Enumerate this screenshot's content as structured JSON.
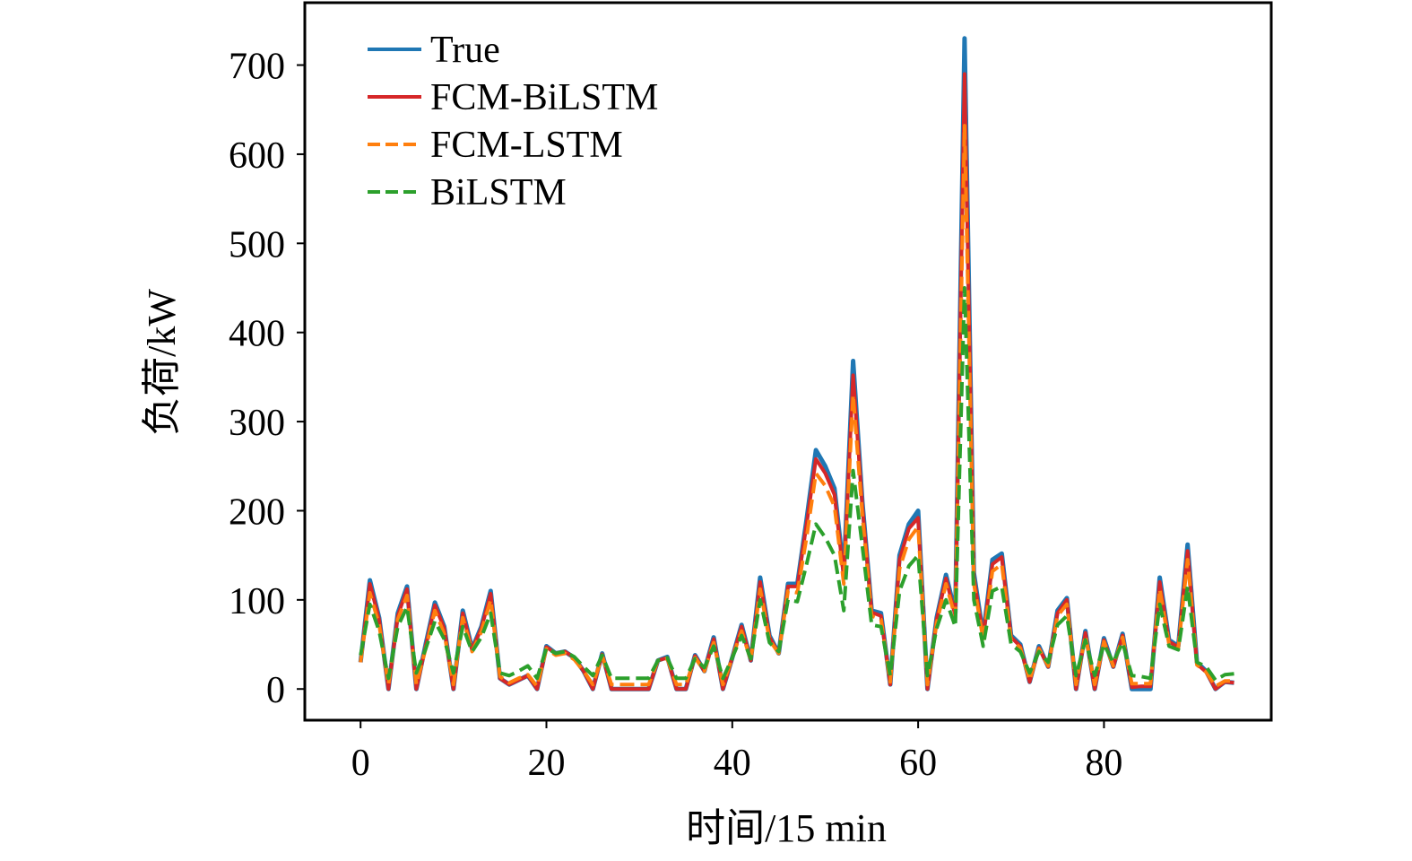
{
  "chart_data": {
    "type": "line",
    "title": "",
    "xlabel": "时间/15 min",
    "ylabel": "负荷/kW",
    "xlim": [
      -6,
      98
    ],
    "ylim": [
      -35,
      770
    ],
    "xticks": [
      0,
      20,
      40,
      60,
      80
    ],
    "yticks": [
      0,
      100,
      200,
      300,
      400,
      500,
      600,
      700
    ],
    "grid": false,
    "legend_position": "top-left",
    "x": [
      0,
      1,
      2,
      3,
      4,
      5,
      6,
      7,
      8,
      9,
      10,
      11,
      12,
      13,
      14,
      15,
      16,
      17,
      18,
      19,
      20,
      21,
      22,
      23,
      24,
      25,
      26,
      27,
      28,
      29,
      30,
      31,
      32,
      33,
      34,
      35,
      36,
      37,
      38,
      39,
      40,
      41,
      42,
      43,
      44,
      45,
      46,
      47,
      48,
      49,
      50,
      51,
      52,
      53,
      54,
      55,
      56,
      57,
      58,
      59,
      60,
      61,
      62,
      63,
      64,
      65,
      66,
      67,
      68,
      69,
      70,
      71,
      72,
      73,
      74,
      75,
      76,
      77,
      78,
      79,
      80,
      81,
      82,
      83,
      84,
      85,
      86,
      87,
      88,
      89,
      90,
      91,
      92,
      93,
      94
    ],
    "series": [
      {
        "name": "True",
        "color": "#1f77b4",
        "dash": "solid",
        "values": [
          30,
          122,
          80,
          0,
          85,
          115,
          0,
          50,
          97,
          70,
          0,
          88,
          45,
          70,
          110,
          12,
          5,
          10,
          15,
          0,
          48,
          40,
          42,
          35,
          20,
          0,
          40,
          0,
          0,
          0,
          0,
          0,
          32,
          36,
          0,
          0,
          38,
          20,
          58,
          0,
          35,
          72,
          32,
          125,
          60,
          40,
          118,
          118,
          190,
          268,
          250,
          225,
          130,
          368,
          210,
          88,
          85,
          5,
          150,
          185,
          200,
          0,
          80,
          128,
          85,
          730,
          130,
          60,
          145,
          152,
          60,
          50,
          8,
          48,
          25,
          88,
          102,
          0,
          65,
          0,
          57,
          25,
          62,
          0,
          0,
          0,
          125,
          55,
          48,
          162,
          30,
          20,
          0,
          8,
          7
        ]
      },
      {
        "name": "FCM-BiLSTM",
        "color": "#d62728",
        "dash": "solid",
        "values": [
          30,
          118,
          78,
          0,
          82,
          112,
          0,
          48,
          94,
          68,
          0,
          85,
          44,
          68,
          107,
          12,
          5,
          10,
          15,
          0,
          47,
          40,
          42,
          35,
          20,
          0,
          39,
          0,
          0,
          0,
          0,
          0,
          32,
          35,
          0,
          0,
          37,
          20,
          56,
          0,
          35,
          70,
          32,
          120,
          58,
          40,
          115,
          115,
          185,
          258,
          242,
          218,
          125,
          352,
          205,
          86,
          82,
          5,
          145,
          180,
          192,
          0,
          78,
          124,
          82,
          690,
          125,
          58,
          140,
          148,
          58,
          48,
          8,
          46,
          25,
          85,
          100,
          0,
          63,
          0,
          55,
          25,
          60,
          2,
          3,
          3,
          120,
          53,
          47,
          155,
          28,
          19,
          0,
          8,
          7
        ]
      },
      {
        "name": "FCM-LSTM",
        "color": "#ff7f0e",
        "dash": "dashed",
        "values": [
          30,
          108,
          72,
          5,
          78,
          105,
          5,
          45,
          88,
          62,
          5,
          80,
          42,
          64,
          100,
          14,
          7,
          12,
          16,
          3,
          45,
          38,
          40,
          33,
          20,
          5,
          37,
          5,
          5,
          5,
          5,
          5,
          32,
          34,
          5,
          5,
          35,
          20,
          52,
          5,
          35,
          65,
          32,
          112,
          55,
          40,
          110,
          108,
          170,
          242,
          228,
          205,
          118,
          330,
          195,
          82,
          78,
          8,
          135,
          168,
          182,
          5,
          74,
          118,
          80,
          632,
          118,
          55,
          132,
          140,
          55,
          46,
          10,
          45,
          26,
          82,
          95,
          5,
          60,
          5,
          53,
          26,
          58,
          6,
          6,
          6,
          112,
          50,
          46,
          145,
          27,
          19,
          3,
          9,
          9
        ]
      },
      {
        "name": "BiLSTM",
        "color": "#2ca02c",
        "dash": "dashed",
        "values": [
          38,
          95,
          65,
          12,
          70,
          92,
          18,
          45,
          76,
          56,
          18,
          70,
          42,
          58,
          85,
          18,
          15,
          20,
          26,
          12,
          46,
          40,
          42,
          36,
          25,
          15,
          38,
          12,
          12,
          12,
          12,
          12,
          32,
          35,
          12,
          12,
          34,
          24,
          48,
          12,
          35,
          60,
          34,
          100,
          52,
          42,
          100,
          98,
          140,
          185,
          170,
          150,
          88,
          245,
          160,
          72,
          70,
          15,
          110,
          138,
          150,
          15,
          68,
          100,
          70,
          450,
          100,
          48,
          110,
          115,
          50,
          42,
          18,
          42,
          30,
          72,
          82,
          15,
          55,
          15,
          50,
          30,
          52,
          15,
          14,
          12,
          95,
          48,
          44,
          115,
          30,
          25,
          10,
          16,
          17
        ]
      }
    ]
  }
}
